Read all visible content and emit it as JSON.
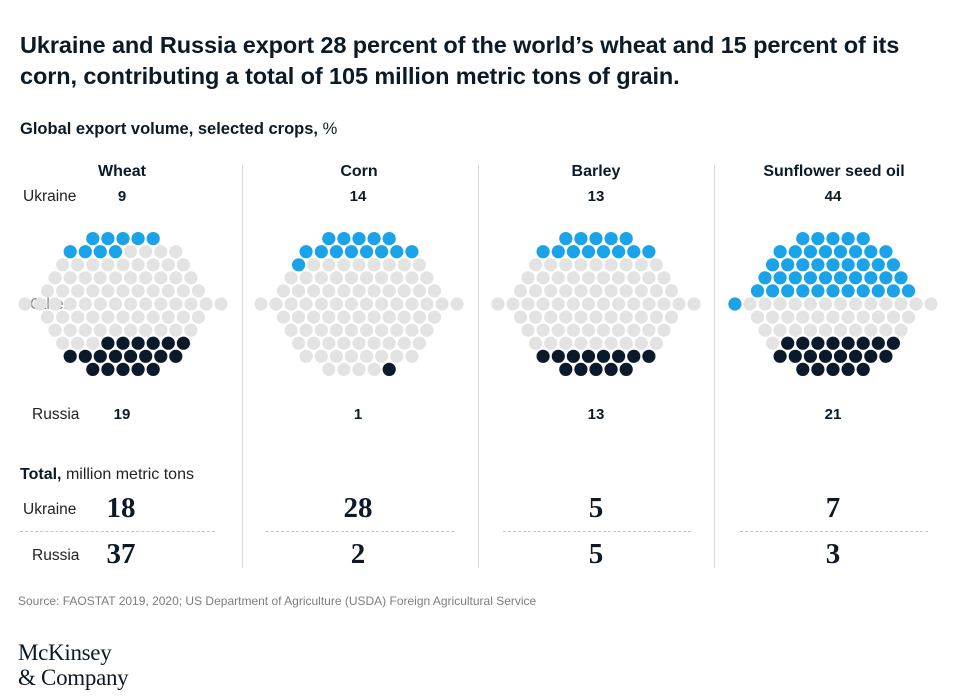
{
  "title": "Ukraine and Russia export 28 percent of the world’s wheat and 15 percent of its corn, contributing a total of 105 million metric tons of grain.",
  "subtitle": "Global export volume, selected crops,",
  "subtitle_unit": "%",
  "labels": {
    "ukraine": "Ukraine",
    "others": "Others",
    "russia": "Russia",
    "total_bold": "Total,",
    "total_rest": "million metric tons"
  },
  "colors": {
    "ukraine": "#1aa3e8",
    "others": "#e3e3e3",
    "russia": "#0b1a2b"
  },
  "chart_data": {
    "type": "dot-matrix",
    "unit": "% of global export volume (1 dot = 1%)",
    "categories": [
      "Wheat",
      "Corn",
      "Barley",
      "Sunflower seed oil"
    ],
    "series": [
      {
        "name": "Ukraine",
        "values": [
          9,
          14,
          13,
          44
        ]
      },
      {
        "name": "Others",
        "values": [
          72,
          85,
          74,
          35
        ]
      },
      {
        "name": "Russia",
        "values": [
          19,
          1,
          13,
          21
        ]
      }
    ],
    "totals_unit": "million metric tons",
    "totals": [
      {
        "name": "Ukraine",
        "values": [
          18,
          28,
          5,
          7
        ]
      },
      {
        "name": "Russia",
        "values": [
          37,
          2,
          5,
          3
        ]
      }
    ]
  },
  "source": "Source: FAOSTAT 2019, 2020; US Department of Agriculture (USDA) Foreign Agricultural Service",
  "logo": {
    "line1": "McKinsey",
    "line2": "& Company"
  }
}
